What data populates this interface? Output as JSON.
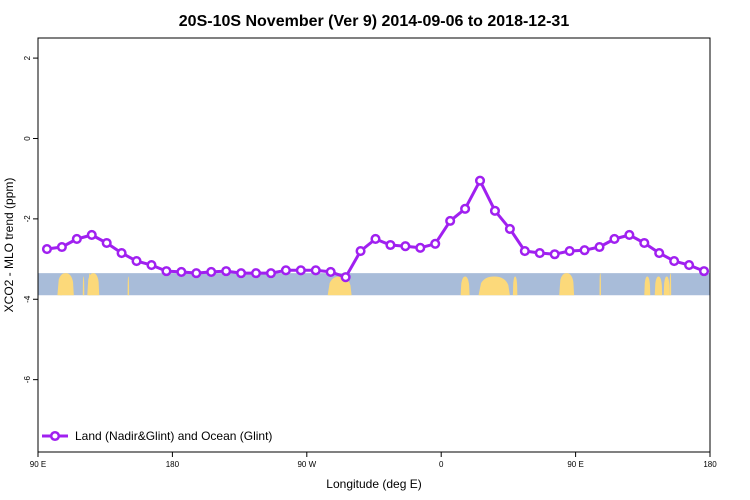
{
  "chart_data": {
    "type": "line",
    "title": "20S-10S November (Ver 9)   2014-09-06 to 2018-12-31",
    "xlabel": "Longitude (deg E)",
    "ylabel": "XCO2 - MLO trend (ppm)",
    "xlim": [
      90,
      540
    ],
    "ylim": [
      -7.8,
      2.5
    ],
    "x_ticks": [
      {
        "value": 90,
        "label": "90 E"
      },
      {
        "value": 180,
        "label": "180"
      },
      {
        "value": 270,
        "label": "90 W"
      },
      {
        "value": 360,
        "label": "0"
      },
      {
        "value": 450,
        "label": "90 E"
      },
      {
        "value": 540,
        "label": "180"
      }
    ],
    "y_ticks": [
      {
        "value": 2,
        "label": "2"
      },
      {
        "value": 0,
        "label": "0"
      },
      {
        "value": -2,
        "label": "-2"
      },
      {
        "value": -4,
        "label": "-4"
      },
      {
        "value": -6,
        "label": "-6"
      }
    ],
    "series": [
      {
        "name": "Land (Nadir&Glint) and Ocean (Glint)",
        "color": "#a020f0",
        "x": [
          96,
          106,
          116,
          126,
          136,
          146,
          156,
          166,
          176,
          186,
          196,
          206,
          216,
          226,
          236,
          246,
          256,
          266,
          276,
          286,
          296,
          306,
          316,
          326,
          336,
          346,
          356,
          366,
          376,
          386,
          396,
          406,
          416,
          426,
          436,
          446,
          456,
          466,
          476,
          486,
          496,
          506,
          516,
          526,
          536
        ],
        "y": [
          -2.75,
          -2.7,
          -2.5,
          -2.4,
          -2.6,
          -2.85,
          -3.05,
          -3.15,
          -3.3,
          -3.32,
          -3.35,
          -3.32,
          -3.3,
          -3.35,
          -3.35,
          -3.35,
          -3.28,
          -3.28,
          -3.28,
          -3.32,
          -3.45,
          -2.8,
          -2.5,
          -2.65,
          -2.68,
          -2.72,
          -2.62,
          -2.05,
          -1.75,
          -1.05,
          -1.8,
          -2.25,
          -2.8,
          -2.85,
          -2.88,
          -2.8,
          -2.78,
          -2.7,
          -2.5,
          -2.4,
          -2.6,
          -2.85,
          -3.05,
          -3.15,
          -3.3
        ]
      }
    ],
    "band": {
      "y_range": [
        -3.9,
        -3.35
      ],
      "ocean_color": "#a8bcd9",
      "land_color": "#fcd97a",
      "land_x": [
        [
          123,
          131
        ],
        [
          150,
          151
        ],
        [
          284,
          300
        ],
        [
          103,
          114
        ],
        [
          105,
          106
        ],
        [
          120,
          121
        ],
        [
          124,
          125
        ],
        [
          385,
          406
        ],
        [
          373,
          379
        ],
        [
          439,
          449
        ],
        [
          408,
          411
        ],
        [
          503,
          508
        ],
        [
          513,
          514
        ],
        [
          496,
          500
        ],
        [
          509,
          513
        ],
        [
          466,
          467
        ]
      ]
    },
    "grid": false,
    "legend": {
      "position": "bottom-left"
    }
  }
}
